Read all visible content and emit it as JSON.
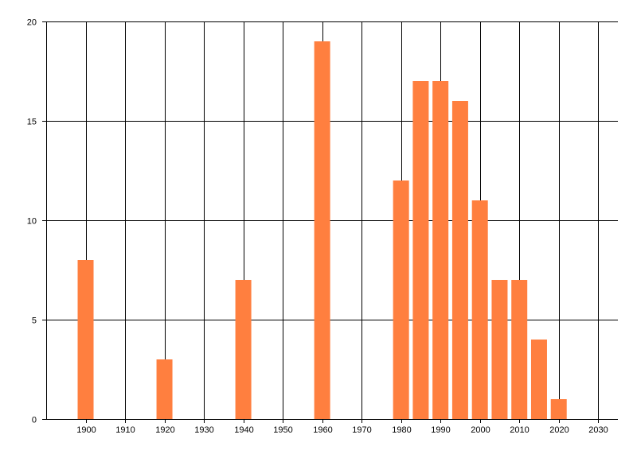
{
  "chart_data": {
    "type": "bar",
    "x": [
      1900,
      1920,
      1940,
      1960,
      1980,
      1985,
      1990,
      1995,
      2000,
      2005,
      2010,
      2015,
      2020
    ],
    "values": [
      8,
      3,
      7,
      19,
      12,
      17,
      17,
      16,
      11,
      7,
      7,
      4,
      1
    ],
    "xlim": [
      1890,
      2035
    ],
    "ylim": [
      0,
      20
    ],
    "x_ticks": [
      1900,
      1910,
      1920,
      1930,
      1940,
      1950,
      1960,
      1970,
      1980,
      1990,
      2000,
      2010,
      2020,
      2030
    ],
    "y_ticks": [
      0,
      5,
      10,
      15,
      20
    ],
    "grid": true,
    "title": "",
    "xlabel": "",
    "ylabel": "",
    "colors": {
      "bar": "#FF7F3F",
      "grid": "#000000",
      "axis": "#000000"
    }
  }
}
